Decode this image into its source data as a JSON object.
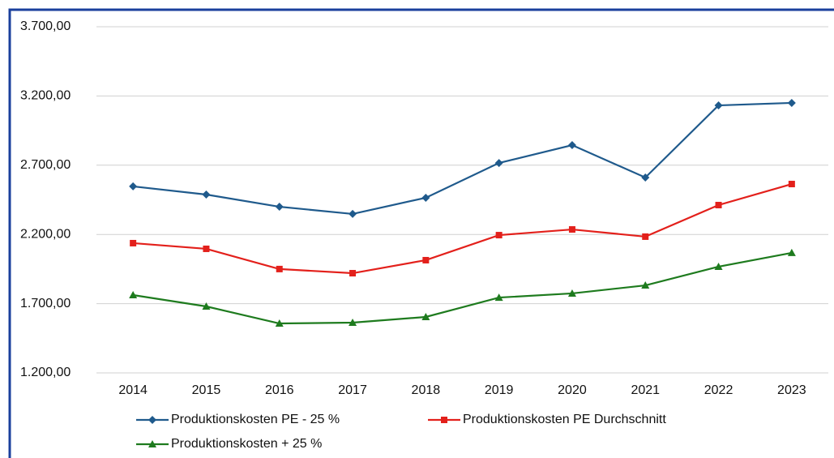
{
  "chart_data": {
    "type": "line",
    "categories": [
      "2014",
      "2015",
      "2016",
      "2017",
      "2018",
      "2019",
      "2020",
      "2021",
      "2022",
      "2023"
    ],
    "series": [
      {
        "name": "Produktionskosten PE - 25 %",
        "color": "#1f5a8c",
        "marker": "diamond",
        "values": [
          2547,
          2488,
          2400,
          2348,
          2465,
          2716,
          2845,
          2611,
          3132,
          3150
        ]
      },
      {
        "name": "Produktionskosten PE Durchschnitt",
        "color": "#e3201b",
        "marker": "square",
        "values": [
          2137,
          2096,
          1950,
          1920,
          2014,
          2195,
          2236,
          2184,
          2412,
          2564
        ]
      },
      {
        "name": "Produktionskosten + 25 %",
        "color": "#1e7b1e",
        "marker": "triangle",
        "values": [
          1762,
          1680,
          1557,
          1563,
          1604,
          1744,
          1774,
          1832,
          1967,
          2067
        ]
      }
    ],
    "ylim": [
      1200,
      3700
    ],
    "yticks": [
      {
        "value": 1200,
        "label": "1.200,00"
      },
      {
        "value": 1700,
        "label": "1.700,00"
      },
      {
        "value": 2200,
        "label": "2.200,00"
      },
      {
        "value": 2700,
        "label": "2.700,00"
      },
      {
        "value": 3200,
        "label": "3.200,00"
      },
      {
        "value": 3700,
        "label": "3.700,00"
      }
    ],
    "grid": true,
    "legend": "bottom"
  }
}
